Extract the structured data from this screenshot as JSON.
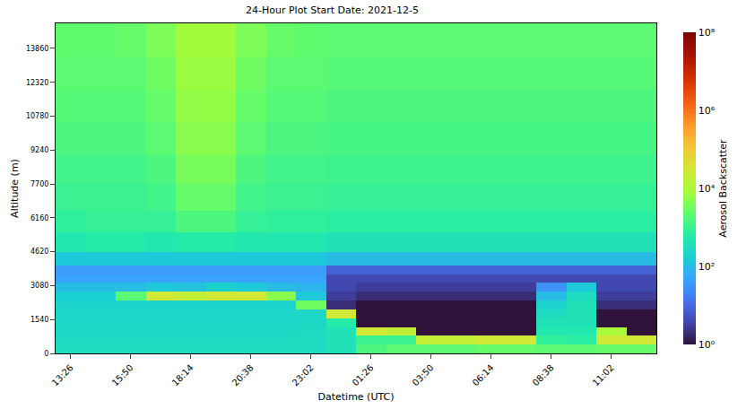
{
  "chart_data": {
    "type": "heatmap",
    "title": "24-Hour Plot Start Date: 2021-12-5",
    "x_label": "Datetime (UTC)",
    "y_label": "Altitude (m)",
    "colorbar_label": "Aerosol Backscatter",
    "categories": [
      "13:26",
      null,
      "15:50",
      null,
      "18:14",
      null,
      "20:38",
      null,
      "23:02",
      null,
      "01:26",
      null,
      "03:50",
      null,
      "06:14",
      null,
      "08:38",
      null,
      "11:02",
      null
    ],
    "altitude_edges": [
      0,
      400,
      800,
      1200,
      1600,
      2000,
      2400,
      2800,
      3200,
      3600,
      4000,
      4600,
      5500,
      6500,
      7700,
      9000,
      10500,
      12000,
      13500,
      15000
    ],
    "values": [
      [
        300,
        300,
        300,
        300,
        300,
        300,
        300,
        300,
        300,
        400,
        1500,
        2000,
        2000,
        2000,
        2500,
        2500,
        2000,
        2000,
        2500,
        2500
      ],
      [
        280,
        280,
        280,
        280,
        280,
        280,
        280,
        280,
        300,
        400,
        1000,
        1000,
        20000,
        20000,
        30000,
        30000,
        800,
        700,
        30000,
        30000
      ],
      [
        260,
        260,
        260,
        260,
        260,
        260,
        260,
        260,
        280,
        400,
        30000,
        20000,
        1,
        1,
        1,
        1,
        500,
        500,
        10000,
        1
      ],
      [
        250,
        250,
        250,
        250,
        250,
        250,
        250,
        250,
        260,
        600,
        1,
        1,
        1,
        1,
        1,
        1,
        400,
        400,
        1,
        1
      ],
      [
        240,
        240,
        240,
        240,
        240,
        240,
        240,
        240,
        250,
        30000,
        1,
        1,
        1,
        1,
        1,
        1,
        300,
        400,
        1,
        1
      ],
      [
        220,
        220,
        220,
        220,
        220,
        220,
        220,
        220,
        3000,
        2,
        1,
        1,
        1,
        1,
        1,
        1,
        200,
        400,
        2,
        2
      ],
      [
        180,
        180,
        2000,
        30000,
        20000,
        30000,
        30000,
        5000,
        150,
        3,
        2,
        2,
        2,
        2,
        2,
        2,
        100,
        300,
        3,
        3
      ],
      [
        100,
        100,
        100,
        150,
        120,
        200,
        150,
        100,
        80,
        4,
        3,
        3,
        3,
        3,
        3,
        3,
        30,
        150,
        4,
        4
      ],
      [
        50,
        50,
        50,
        50,
        50,
        50,
        50,
        50,
        50,
        4,
        4,
        4,
        4,
        4,
        4,
        4,
        4,
        4,
        4,
        4
      ],
      [
        40,
        40,
        40,
        40,
        40,
        40,
        40,
        40,
        40,
        8,
        8,
        8,
        8,
        8,
        8,
        8,
        8,
        8,
        8,
        8
      ],
      [
        150,
        150,
        150,
        150,
        150,
        150,
        150,
        150,
        150,
        100,
        100,
        100,
        100,
        100,
        100,
        100,
        100,
        100,
        100,
        100
      ],
      [
        500,
        600,
        600,
        500,
        600,
        600,
        500,
        500,
        500,
        400,
        400,
        400,
        400,
        400,
        400,
        400,
        400,
        400,
        400,
        400
      ],
      [
        800,
        900,
        900,
        900,
        1500,
        1500,
        900,
        800,
        800,
        700,
        700,
        700,
        700,
        700,
        700,
        700,
        700,
        700,
        700,
        700
      ],
      [
        1000,
        1000,
        1000,
        1200,
        2500,
        2500,
        1200,
        1000,
        1000,
        900,
        900,
        900,
        900,
        900,
        900,
        900,
        900,
        900,
        900,
        900
      ],
      [
        1200,
        1200,
        1200,
        1500,
        3500,
        3500,
        1500,
        1200,
        1200,
        1100,
        1100,
        1100,
        1100,
        1100,
        1100,
        1100,
        1100,
        1100,
        1100,
        1100
      ],
      [
        1500,
        1500,
        1500,
        2000,
        5000,
        5000,
        2000,
        1500,
        1500,
        1300,
        1300,
        1300,
        1300,
        1300,
        1300,
        1300,
        1300,
        1300,
        1300,
        1300
      ],
      [
        1800,
        1800,
        1800,
        2500,
        6000,
        6000,
        2500,
        1800,
        1800,
        1500,
        1500,
        1500,
        1500,
        1500,
        1500,
        1500,
        1500,
        1500,
        1500,
        1500
      ],
      [
        2000,
        2000,
        2000,
        3000,
        7000,
        7000,
        3000,
        2000,
        2000,
        1800,
        1800,
        1800,
        1800,
        1800,
        1800,
        1800,
        1800,
        1800,
        1800,
        1800
      ],
      [
        2200,
        2200,
        2500,
        4000,
        8000,
        8000,
        4000,
        2500,
        2200,
        2000,
        2000,
        2000,
        2000,
        2000,
        2000,
        2000,
        2000,
        2000,
        2000,
        2000
      ]
    ],
    "ylim": [
      0,
      15000
    ],
    "yticks": [
      0,
      1540,
      3080,
      4620,
      6160,
      7700,
      9240,
      10780,
      12320,
      13860
    ],
    "color_range": [
      1,
      100000000
    ],
    "color_ticks": [
      {
        "value": 1,
        "label": "10⁰"
      },
      {
        "value": 100,
        "label": "10²"
      },
      {
        "value": 10000,
        "label": "10⁴"
      },
      {
        "value": 1000000,
        "label": "10⁶"
      },
      {
        "value": 100000000,
        "label": "10⁸"
      }
    ]
  }
}
